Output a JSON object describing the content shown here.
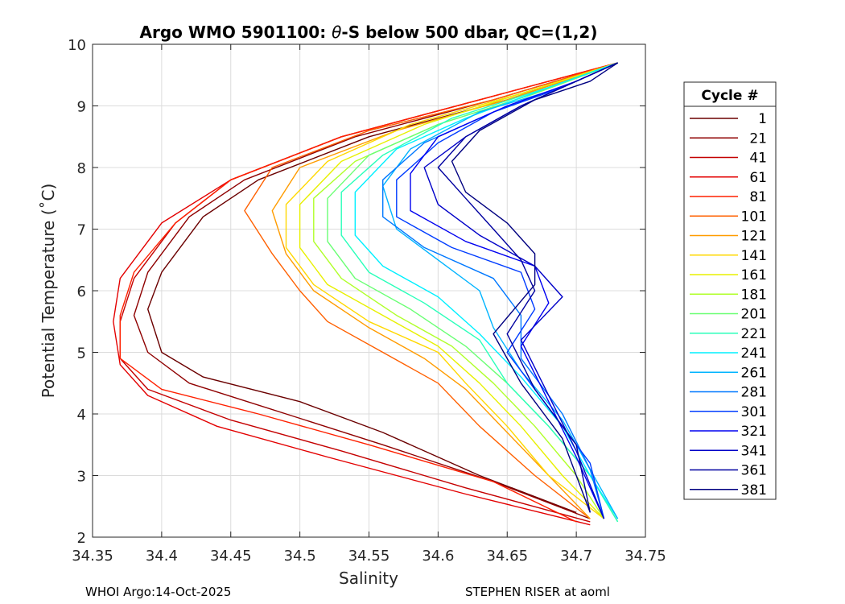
{
  "chart_data": {
    "type": "line",
    "title_prefix": "Argo WMO 5901100: ",
    "title_theta": "θ",
    "title_suffix": "-S below 500 dbar,  QC=(1,2)",
    "xlabel": "Salinity",
    "ylabel": "Potential Temperature (˚C)",
    "xlim": [
      34.35,
      34.75
    ],
    "ylim": [
      2,
      10
    ],
    "xticks": [
      "34.35",
      "34.4",
      "34.45",
      "34.5",
      "34.55",
      "34.6",
      "34.65",
      "34.7",
      "34.75"
    ],
    "yticks": [
      "2",
      "3",
      "4",
      "5",
      "6",
      "7",
      "8",
      "9",
      "10"
    ],
    "grid": true,
    "legend_title": "Cycle #",
    "legend_position": "right",
    "legend": [
      {
        "label": "1",
        "color": "#6b0000"
      },
      {
        "label": "21",
        "color": "#8f0000"
      },
      {
        "label": "41",
        "color": "#c40000"
      },
      {
        "label": "61",
        "color": "#e30000"
      },
      {
        "label": "81",
        "color": "#ff2000"
      },
      {
        "label": "101",
        "color": "#ff6000"
      },
      {
        "label": "121",
        "color": "#ff9c00"
      },
      {
        "label": "141",
        "color": "#ffd800"
      },
      {
        "label": "161",
        "color": "#e8f000"
      },
      {
        "label": "181",
        "color": "#b0ff2a"
      },
      {
        "label": "201",
        "color": "#6aff74"
      },
      {
        "label": "221",
        "color": "#2affba"
      },
      {
        "label": "241",
        "color": "#00f0ff"
      },
      {
        "label": "261",
        "color": "#00b4ff"
      },
      {
        "label": "281",
        "color": "#0078ff"
      },
      {
        "label": "301",
        "color": "#003cff"
      },
      {
        "label": "321",
        "color": "#0000f0"
      },
      {
        "label": "341",
        "color": "#0000c8"
      },
      {
        "label": "361",
        "color": "#0000a0"
      },
      {
        "label": "381",
        "color": "#000080"
      }
    ],
    "series": [
      {
        "name": "1",
        "color": "#6b0000",
        "points": [
          [
            34.73,
            9.7
          ],
          [
            34.65,
            9.1
          ],
          [
            34.55,
            8.5
          ],
          [
            34.47,
            7.8
          ],
          [
            34.43,
            7.2
          ],
          [
            34.4,
            6.3
          ],
          [
            34.39,
            5.7
          ],
          [
            34.4,
            5.0
          ],
          [
            34.43,
            4.6
          ],
          [
            34.5,
            4.2
          ],
          [
            34.56,
            3.7
          ],
          [
            34.63,
            3.0
          ],
          [
            34.7,
            2.4
          ]
        ]
      },
      {
        "name": "21",
        "color": "#8f0000",
        "points": [
          [
            34.73,
            9.7
          ],
          [
            34.64,
            9.1
          ],
          [
            34.54,
            8.5
          ],
          [
            34.46,
            7.8
          ],
          [
            34.42,
            7.2
          ],
          [
            34.39,
            6.3
          ],
          [
            34.38,
            5.6
          ],
          [
            34.39,
            5.0
          ],
          [
            34.42,
            4.5
          ],
          [
            34.49,
            4.0
          ],
          [
            34.56,
            3.5
          ],
          [
            34.64,
            2.9
          ],
          [
            34.71,
            2.3
          ]
        ]
      },
      {
        "name": "41",
        "color": "#c40000",
        "points": [
          [
            34.73,
            9.7
          ],
          [
            34.63,
            9.1
          ],
          [
            34.53,
            8.5
          ],
          [
            34.45,
            7.8
          ],
          [
            34.41,
            7.1
          ],
          [
            34.38,
            6.2
          ],
          [
            34.37,
            5.5
          ],
          [
            34.37,
            4.9
          ],
          [
            34.39,
            4.4
          ],
          [
            34.45,
            3.9
          ],
          [
            34.53,
            3.4
          ],
          [
            34.62,
            2.8
          ],
          [
            34.71,
            2.25
          ]
        ]
      },
      {
        "name": "61",
        "color": "#e30000",
        "points": [
          [
            34.73,
            9.7
          ],
          [
            34.63,
            9.1
          ],
          [
            34.53,
            8.5
          ],
          [
            34.45,
            7.8
          ],
          [
            34.4,
            7.1
          ],
          [
            34.37,
            6.2
          ],
          [
            34.365,
            5.5
          ],
          [
            34.37,
            4.8
          ],
          [
            34.39,
            4.3
          ],
          [
            34.44,
            3.8
          ],
          [
            34.52,
            3.3
          ],
          [
            34.62,
            2.7
          ],
          [
            34.71,
            2.2
          ]
        ]
      },
      {
        "name": "81",
        "color": "#ff2000",
        "points": [
          [
            34.73,
            9.7
          ],
          [
            34.63,
            9.1
          ],
          [
            34.53,
            8.5
          ],
          [
            34.45,
            7.8
          ],
          [
            34.41,
            7.1
          ],
          [
            34.38,
            6.3
          ],
          [
            34.37,
            5.6
          ],
          [
            34.37,
            4.9
          ],
          [
            34.4,
            4.4
          ],
          [
            34.47,
            4.0
          ],
          [
            34.55,
            3.5
          ],
          [
            34.64,
            2.9
          ],
          [
            34.7,
            2.25
          ]
        ]
      },
      {
        "name": "101",
        "color": "#ff6000",
        "points": [
          [
            34.73,
            9.7
          ],
          [
            34.64,
            9.1
          ],
          [
            34.55,
            8.6
          ],
          [
            34.48,
            8.0
          ],
          [
            34.46,
            7.3
          ],
          [
            34.48,
            6.6
          ],
          [
            34.5,
            6.0
          ],
          [
            34.52,
            5.5
          ],
          [
            34.56,
            5.0
          ],
          [
            34.6,
            4.5
          ],
          [
            34.63,
            3.8
          ],
          [
            34.67,
            3.0
          ],
          [
            34.71,
            2.3
          ]
        ]
      },
      {
        "name": "121",
        "color": "#ff9c00",
        "points": [
          [
            34.73,
            9.7
          ],
          [
            34.65,
            9.1
          ],
          [
            34.57,
            8.6
          ],
          [
            34.5,
            8.0
          ],
          [
            34.48,
            7.3
          ],
          [
            34.49,
            6.6
          ],
          [
            34.51,
            6.0
          ],
          [
            34.55,
            5.4
          ],
          [
            34.59,
            4.9
          ],
          [
            34.62,
            4.4
          ],
          [
            34.65,
            3.7
          ],
          [
            34.68,
            3.0
          ],
          [
            34.71,
            2.3
          ]
        ]
      },
      {
        "name": "141",
        "color": "#ffd800",
        "points": [
          [
            34.73,
            9.7
          ],
          [
            34.66,
            9.2
          ],
          [
            34.58,
            8.7
          ],
          [
            34.52,
            8.1
          ],
          [
            34.49,
            7.4
          ],
          [
            34.49,
            6.7
          ],
          [
            34.51,
            6.1
          ],
          [
            34.55,
            5.5
          ],
          [
            34.6,
            5.0
          ],
          [
            34.62,
            4.5
          ],
          [
            34.65,
            3.8
          ],
          [
            34.68,
            3.0
          ],
          [
            34.72,
            2.3
          ]
        ]
      },
      {
        "name": "161",
        "color": "#e8f000",
        "points": [
          [
            34.73,
            9.7
          ],
          [
            34.66,
            9.2
          ],
          [
            34.59,
            8.7
          ],
          [
            34.53,
            8.1
          ],
          [
            34.5,
            7.4
          ],
          [
            34.5,
            6.7
          ],
          [
            34.52,
            6.1
          ],
          [
            34.56,
            5.6
          ],
          [
            34.6,
            5.1
          ],
          [
            34.63,
            4.5
          ],
          [
            34.66,
            3.8
          ],
          [
            34.69,
            3.0
          ],
          [
            34.72,
            2.3
          ]
        ]
      },
      {
        "name": "181",
        "color": "#b0ff2a",
        "points": [
          [
            34.73,
            9.7
          ],
          [
            34.67,
            9.2
          ],
          [
            34.6,
            8.7
          ],
          [
            34.54,
            8.1
          ],
          [
            34.51,
            7.5
          ],
          [
            34.51,
            6.8
          ],
          [
            34.53,
            6.2
          ],
          [
            34.57,
            5.6
          ],
          [
            34.61,
            5.1
          ],
          [
            34.64,
            4.5
          ],
          [
            34.67,
            3.8
          ],
          [
            34.7,
            3.0
          ],
          [
            34.72,
            2.3
          ]
        ]
      },
      {
        "name": "201",
        "color": "#6aff74",
        "points": [
          [
            34.73,
            9.7
          ],
          [
            34.67,
            9.2
          ],
          [
            34.6,
            8.7
          ],
          [
            34.55,
            8.2
          ],
          [
            34.52,
            7.5
          ],
          [
            34.52,
            6.8
          ],
          [
            34.54,
            6.2
          ],
          [
            34.58,
            5.7
          ],
          [
            34.62,
            5.1
          ],
          [
            34.65,
            4.5
          ],
          [
            34.68,
            3.8
          ],
          [
            34.71,
            3.0
          ],
          [
            34.73,
            2.25
          ]
        ]
      },
      {
        "name": "221",
        "color": "#2affba",
        "points": [
          [
            34.73,
            9.7
          ],
          [
            34.68,
            9.3
          ],
          [
            34.61,
            8.8
          ],
          [
            34.56,
            8.2
          ],
          [
            34.53,
            7.6
          ],
          [
            34.53,
            6.9
          ],
          [
            34.55,
            6.3
          ],
          [
            34.59,
            5.8
          ],
          [
            34.63,
            5.2
          ],
          [
            34.65,
            4.5
          ],
          [
            34.68,
            3.8
          ],
          [
            34.71,
            3.0
          ],
          [
            34.73,
            2.25
          ]
        ]
      },
      {
        "name": "241",
        "color": "#00f0ff",
        "points": [
          [
            34.73,
            9.7
          ],
          [
            34.68,
            9.3
          ],
          [
            34.62,
            8.8
          ],
          [
            34.57,
            8.3
          ],
          [
            34.54,
            7.6
          ],
          [
            34.54,
            6.9
          ],
          [
            34.56,
            6.4
          ],
          [
            34.6,
            5.9
          ],
          [
            34.63,
            5.3
          ],
          [
            34.66,
            4.6
          ],
          [
            34.69,
            3.8
          ],
          [
            34.71,
            3.0
          ],
          [
            34.73,
            2.3
          ]
        ]
      },
      {
        "name": "261",
        "color": "#00b4ff",
        "points": [
          [
            34.73,
            9.7
          ],
          [
            34.69,
            9.3
          ],
          [
            34.63,
            8.9
          ],
          [
            34.58,
            8.3
          ],
          [
            34.56,
            7.7
          ],
          [
            34.57,
            7.0
          ],
          [
            34.6,
            6.5
          ],
          [
            34.63,
            6.0
          ],
          [
            34.64,
            5.4
          ],
          [
            34.66,
            4.7
          ],
          [
            34.69,
            3.9
          ],
          [
            34.71,
            3.1
          ],
          [
            34.73,
            2.3
          ]
        ]
      },
      {
        "name": "281",
        "color": "#0078ff",
        "points": [
          [
            34.73,
            9.7
          ],
          [
            34.69,
            9.3
          ],
          [
            34.64,
            8.9
          ],
          [
            34.59,
            8.4
          ],
          [
            34.56,
            7.8
          ],
          [
            34.56,
            7.2
          ],
          [
            34.59,
            6.7
          ],
          [
            34.64,
            6.2
          ],
          [
            34.66,
            5.6
          ],
          [
            34.66,
            4.9
          ],
          [
            34.69,
            4.0
          ],
          [
            34.71,
            3.1
          ],
          [
            34.72,
            2.3
          ]
        ]
      },
      {
        "name": "301",
        "color": "#003cff",
        "points": [
          [
            34.73,
            9.7
          ],
          [
            34.69,
            9.3
          ],
          [
            34.64,
            8.9
          ],
          [
            34.6,
            8.4
          ],
          [
            34.57,
            7.8
          ],
          [
            34.57,
            7.2
          ],
          [
            34.61,
            6.7
          ],
          [
            34.66,
            6.3
          ],
          [
            34.67,
            5.7
          ],
          [
            34.65,
            5.0
          ],
          [
            34.68,
            4.1
          ],
          [
            34.71,
            3.2
          ],
          [
            34.72,
            2.3
          ]
        ]
      },
      {
        "name": "321",
        "color": "#0000f0",
        "points": [
          [
            34.73,
            9.7
          ],
          [
            34.7,
            9.4
          ],
          [
            34.65,
            9.0
          ],
          [
            34.6,
            8.5
          ],
          [
            34.58,
            7.9
          ],
          [
            34.58,
            7.3
          ],
          [
            34.62,
            6.8
          ],
          [
            34.67,
            6.4
          ],
          [
            34.68,
            5.8
          ],
          [
            34.66,
            5.1
          ],
          [
            34.68,
            4.2
          ],
          [
            34.7,
            3.3
          ],
          [
            34.72,
            2.3
          ]
        ]
      },
      {
        "name": "341",
        "color": "#0000c8",
        "points": [
          [
            34.73,
            9.7
          ],
          [
            34.7,
            9.4
          ],
          [
            34.66,
            9.0
          ],
          [
            34.62,
            8.5
          ],
          [
            34.59,
            8.0
          ],
          [
            34.6,
            7.4
          ],
          [
            34.63,
            6.9
          ],
          [
            34.67,
            6.4
          ],
          [
            34.69,
            5.9
          ],
          [
            34.66,
            5.2
          ],
          [
            34.68,
            4.3
          ],
          [
            34.7,
            3.4
          ],
          [
            34.72,
            2.3
          ]
        ]
      },
      {
        "name": "361",
        "color": "#0000a0",
        "points": [
          [
            34.73,
            9.7
          ],
          [
            34.7,
            9.4
          ],
          [
            34.66,
            9.0
          ],
          [
            34.62,
            8.5
          ],
          [
            34.6,
            8.0
          ],
          [
            34.62,
            7.5
          ],
          [
            34.64,
            7.0
          ],
          [
            34.66,
            6.5
          ],
          [
            34.67,
            6.0
          ],
          [
            34.65,
            5.3
          ],
          [
            34.67,
            4.4
          ],
          [
            34.7,
            3.5
          ],
          [
            34.71,
            2.4
          ]
        ]
      },
      {
        "name": "381",
        "color": "#000080",
        "points": [
          [
            34.73,
            9.7
          ],
          [
            34.71,
            9.4
          ],
          [
            34.67,
            9.1
          ],
          [
            34.63,
            8.6
          ],
          [
            34.61,
            8.1
          ],
          [
            34.62,
            7.6
          ],
          [
            34.65,
            7.1
          ],
          [
            34.67,
            6.6
          ],
          [
            34.67,
            6.1
          ],
          [
            34.64,
            5.3
          ],
          [
            34.66,
            4.5
          ],
          [
            34.69,
            3.6
          ],
          [
            34.71,
            2.4
          ]
        ]
      }
    ]
  },
  "footer": {
    "left": "WHOI Argo:14-Oct-2025",
    "right": "STEPHEN RISER at aoml"
  }
}
